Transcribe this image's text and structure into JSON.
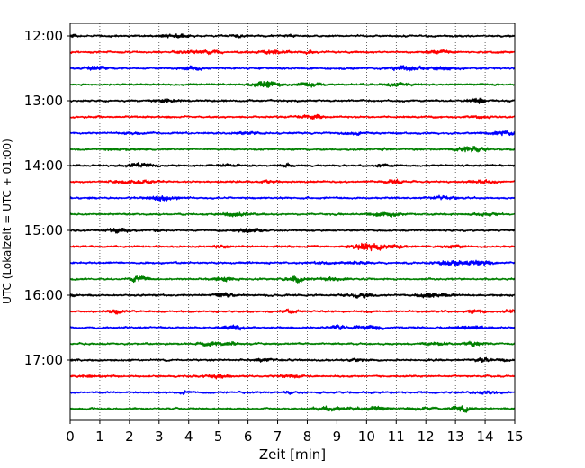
{
  "chart_data": {
    "type": "line",
    "xlabel": "Zeit  [min]",
    "ylabel": "UTC (Lokalzeit = UTC + 01:00)",
    "xlim": [
      0,
      15
    ],
    "x_ticks": [
      0,
      1,
      2,
      3,
      4,
      5,
      6,
      7,
      8,
      9,
      10,
      11,
      12,
      13,
      14,
      15
    ],
    "x_tick_labels": [
      "0",
      "1",
      "2",
      "3",
      "4",
      "5",
      "6",
      "7",
      "8",
      "9",
      "10",
      "11",
      "12",
      "13",
      "14",
      "15"
    ],
    "y_tick_labels": [
      "12:00",
      "13:00",
      "14:00",
      "15:00",
      "16:00",
      "17:00"
    ],
    "y_tick_rows": [
      0,
      4,
      8,
      12,
      16,
      20
    ],
    "grid": "x-dotted",
    "trace_colors": [
      "#000000",
      "#ff0000",
      "#0000ff",
      "#008000"
    ],
    "rows": [
      {
        "offset": "12:00",
        "color": "#000000"
      },
      {
        "offset": "12:15",
        "color": "#ff0000"
      },
      {
        "offset": "12:30",
        "color": "#0000ff"
      },
      {
        "offset": "12:45",
        "color": "#008000"
      },
      {
        "offset": "13:00",
        "color": "#000000"
      },
      {
        "offset": "13:15",
        "color": "#ff0000"
      },
      {
        "offset": "13:30",
        "color": "#0000ff"
      },
      {
        "offset": "13:45",
        "color": "#008000"
      },
      {
        "offset": "14:00",
        "color": "#000000"
      },
      {
        "offset": "14:15",
        "color": "#ff0000"
      },
      {
        "offset": "14:30",
        "color": "#0000ff"
      },
      {
        "offset": "14:45",
        "color": "#008000"
      },
      {
        "offset": "15:00",
        "color": "#000000"
      },
      {
        "offset": "15:15",
        "color": "#ff0000"
      },
      {
        "offset": "15:30",
        "color": "#0000ff"
      },
      {
        "offset": "15:45",
        "color": "#008000"
      },
      {
        "offset": "16:00",
        "color": "#000000"
      },
      {
        "offset": "16:15",
        "color": "#ff0000"
      },
      {
        "offset": "16:30",
        "color": "#0000ff"
      },
      {
        "offset": "16:45",
        "color": "#008000"
      },
      {
        "offset": "17:00",
        "color": "#000000"
      },
      {
        "offset": "17:15",
        "color": "#ff0000"
      },
      {
        "offset": "17:30",
        "color": "#0000ff"
      },
      {
        "offset": "17:45",
        "color": "#008000"
      }
    ]
  }
}
